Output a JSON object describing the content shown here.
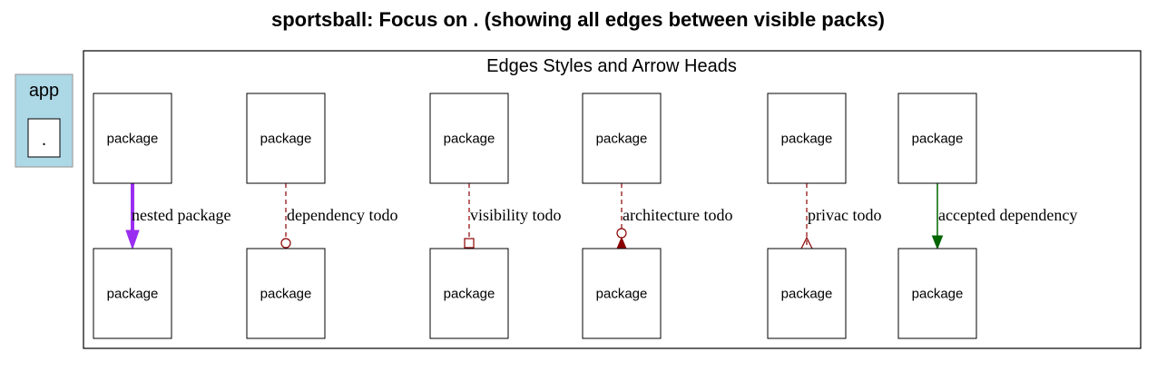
{
  "title": "sportsball: Focus on . (showing all edges between visible packs)",
  "app_cluster": {
    "label": "app",
    "node_label": "."
  },
  "legend_cluster": {
    "label": "Edges Styles and Arrow Heads"
  },
  "node_label": "package",
  "edges": [
    {
      "label": "nested package",
      "color": "#9a2ef0",
      "style": "solid-bold",
      "head": "filled-triangle"
    },
    {
      "label": "dependency todo",
      "color": "#8b0000",
      "style": "dashed",
      "head": "open-circle"
    },
    {
      "label": "visibility todo",
      "color": "#8b0000",
      "style": "dashed",
      "head": "open-box"
    },
    {
      "label": "architecture todo",
      "color": "#8b0000",
      "style": "dashed",
      "head": "circle-over-triangle"
    },
    {
      "label": "privac todo",
      "color": "#8b0000",
      "style": "dashed",
      "head": "open-crow"
    },
    {
      "label": "accepted dependency",
      "color": "#006400",
      "style": "solid",
      "head": "filled-triangle"
    }
  ],
  "colors": {
    "app_cluster_fill": "#add8e6",
    "app_cluster_border": "#a0a0a0",
    "stroke": "#000000"
  }
}
